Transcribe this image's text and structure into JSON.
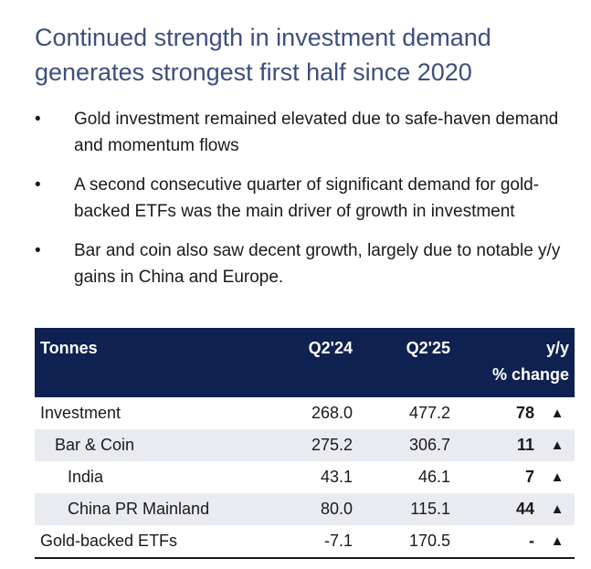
{
  "title": "Continued strength in investment demand generates strongest first half since 2020",
  "bullets": [
    "Gold investment remained elevated due to safe-haven demand and momentum flows",
    "A second consecutive quarter of significant demand for gold-backed ETFs was the main driver of growth in investment",
    "Bar and coin also saw decent growth, largely due to notable y/y gains in China and Europe."
  ],
  "table": {
    "headers": {
      "label": "Tonnes",
      "q224": "Q2'24",
      "q225": "Q2'25",
      "change_line1": "y/y",
      "change_line2": "% change"
    },
    "rows": [
      {
        "label": "Investment",
        "q224": "268.0",
        "q225": "477.2",
        "change": "78",
        "arrow": "▲"
      },
      {
        "label": "Bar & Coin",
        "q224": "275.2",
        "q225": "306.7",
        "change": "11",
        "arrow": "▲"
      },
      {
        "label": "India",
        "q224": "43.1",
        "q225": "46.1",
        "change": "7",
        "arrow": "▲"
      },
      {
        "label": "China PR Mainland",
        "q224": "80.0",
        "q225": "115.1",
        "change": "44",
        "arrow": "▲"
      },
      {
        "label": "Gold-backed ETFs",
        "q224": "-7.1",
        "q225": "170.5",
        "change": "-",
        "arrow": "▲"
      }
    ]
  },
  "colors": {
    "title": "#3d4f7c",
    "header_bg": "#0f2150",
    "row_shade": "#e9ebf0"
  }
}
